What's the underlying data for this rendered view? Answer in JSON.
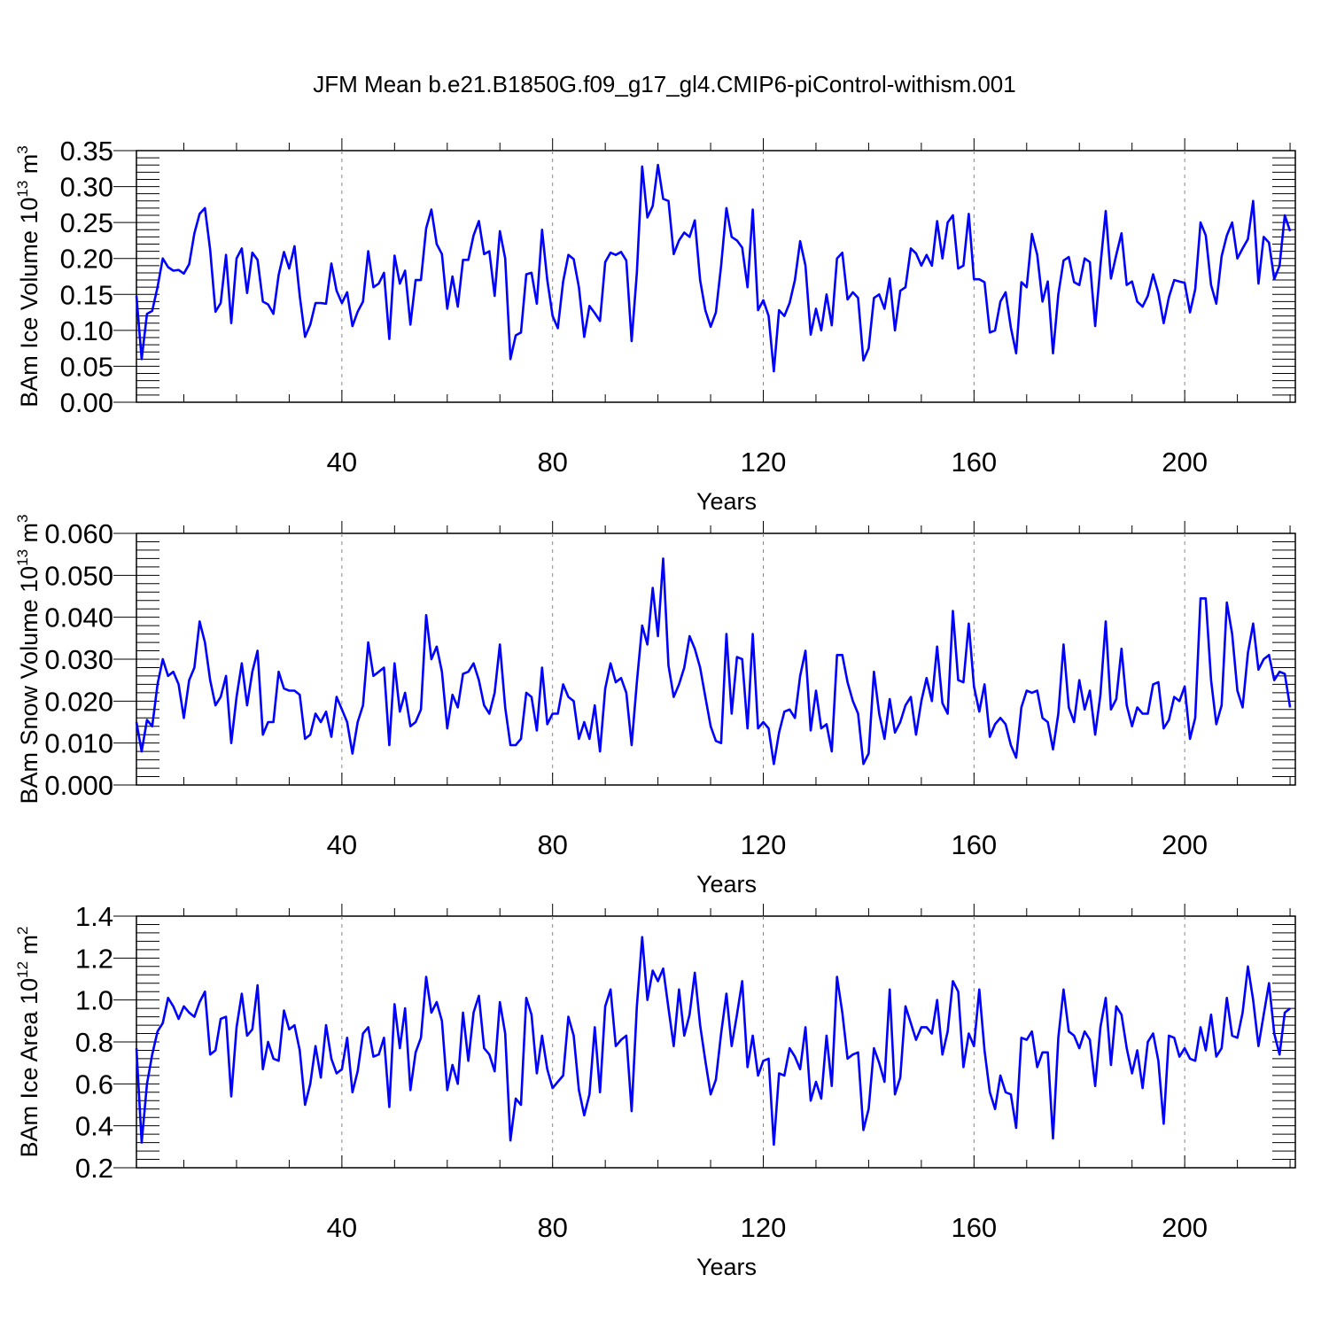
{
  "title": "JFM Mean b.e21.B1850G.f09_g17_gl4.CMIP6-piControl-withism.001",
  "style": {
    "line_color": "#0000ff",
    "grid_color": "#888888"
  },
  "chart_data": [
    {
      "type": "line",
      "xlabel": "Years",
      "ylabel": "BAm Ice Volume 10",
      "ylabel_exp": "13",
      "ylabel_unit": " m",
      "ylabel_unit_exp": "3",
      "xlim": [
        1,
        221
      ],
      "ylim": [
        0,
        0.35
      ],
      "xticks": [
        40,
        80,
        120,
        160,
        200
      ],
      "xtick_labels": [
        "40",
        "80",
        "120",
        "160",
        "200"
      ],
      "yticks": [
        0,
        0.05,
        0.1,
        0.15,
        0.2,
        0.25,
        0.3,
        0.35
      ],
      "ytick_labels": [
        "0.00",
        "0.05",
        "0.10",
        "0.15",
        "0.20",
        "0.25",
        "0.30",
        "0.35"
      ],
      "grid": "vertical dashed at major x ticks",
      "x_start": 1,
      "values": [
        0.148,
        0.06,
        0.123,
        0.127,
        0.16,
        0.2,
        0.188,
        0.183,
        0.184,
        0.179,
        0.192,
        0.235,
        0.262,
        0.27,
        0.212,
        0.126,
        0.138,
        0.205,
        0.11,
        0.2,
        0.214,
        0.152,
        0.208,
        0.198,
        0.14,
        0.136,
        0.123,
        0.177,
        0.209,
        0.186,
        0.217,
        0.148,
        0.091,
        0.108,
        0.138,
        0.138,
        0.137,
        0.193,
        0.155,
        0.138,
        0.153,
        0.106,
        0.126,
        0.14,
        0.21,
        0.16,
        0.165,
        0.18,
        0.088,
        0.204,
        0.165,
        0.183,
        0.108,
        0.17,
        0.17,
        0.242,
        0.268,
        0.22,
        0.206,
        0.13,
        0.175,
        0.133,
        0.198,
        0.198,
        0.232,
        0.252,
        0.206,
        0.21,
        0.148,
        0.238,
        0.2,
        0.06,
        0.093,
        0.097,
        0.178,
        0.18,
        0.137,
        0.24,
        0.17,
        0.12,
        0.103,
        0.168,
        0.205,
        0.199,
        0.16,
        0.091,
        0.134,
        0.124,
        0.113,
        0.195,
        0.208,
        0.205,
        0.209,
        0.197,
        0.085,
        0.18,
        0.328,
        0.257,
        0.273,
        0.33,
        0.283,
        0.28,
        0.206,
        0.225,
        0.236,
        0.23,
        0.253,
        0.17,
        0.128,
        0.105,
        0.125,
        0.19,
        0.27,
        0.23,
        0.225,
        0.215,
        0.16,
        0.268,
        0.128,
        0.142,
        0.12,
        0.043,
        0.128,
        0.12,
        0.138,
        0.17,
        0.224,
        0.19,
        0.094,
        0.13,
        0.1,
        0.15,
        0.107,
        0.2,
        0.208,
        0.143,
        0.153,
        0.145,
        0.058,
        0.075,
        0.145,
        0.15,
        0.13,
        0.172,
        0.1,
        0.155,
        0.16,
        0.214,
        0.207,
        0.19,
        0.205,
        0.19,
        0.252,
        0.2,
        0.25,
        0.26,
        0.186,
        0.19,
        0.262,
        0.171,
        0.171,
        0.167,
        0.097,
        0.1,
        0.14,
        0.153,
        0.104,
        0.068,
        0.167,
        0.16,
        0.234,
        0.205,
        0.14,
        0.168,
        0.068,
        0.15,
        0.197,
        0.202,
        0.167,
        0.163,
        0.2,
        0.195,
        0.106,
        0.19,
        0.266,
        0.172,
        0.205,
        0.235,
        0.163,
        0.168,
        0.14,
        0.133,
        0.148,
        0.178,
        0.152,
        0.11,
        0.146,
        0.17,
        0.168,
        0.166,
        0.125,
        0.157,
        0.25,
        0.232,
        0.163,
        0.137,
        0.203,
        0.232,
        0.25,
        0.2,
        0.214,
        0.227,
        0.28,
        0.165,
        0.23,
        0.222,
        0.171,
        0.19,
        0.26,
        0.238
      ]
    },
    {
      "type": "line",
      "xlabel": "Years",
      "ylabel": "BAm Snow Volume 10",
      "ylabel_exp": "13",
      "ylabel_unit": " m",
      "ylabel_unit_exp": "3",
      "xlim": [
        1,
        221
      ],
      "ylim": [
        0,
        0.06
      ],
      "xticks": [
        40,
        80,
        120,
        160,
        200
      ],
      "xtick_labels": [
        "40",
        "80",
        "120",
        "160",
        "200"
      ],
      "yticks": [
        0,
        0.01,
        0.02,
        0.03,
        0.04,
        0.05,
        0.06
      ],
      "ytick_labels": [
        "0.000",
        "0.010",
        "0.020",
        "0.030",
        "0.040",
        "0.050",
        "0.060"
      ],
      "grid": "vertical dashed at major x ticks",
      "x_start": 1,
      "values": [
        0.015,
        0.008,
        0.0155,
        0.014,
        0.024,
        0.03,
        0.026,
        0.027,
        0.024,
        0.016,
        0.025,
        0.028,
        0.039,
        0.034,
        0.025,
        0.019,
        0.021,
        0.026,
        0.01,
        0.021,
        0.029,
        0.019,
        0.027,
        0.032,
        0.012,
        0.015,
        0.015,
        0.027,
        0.023,
        0.0225,
        0.0225,
        0.0215,
        0.011,
        0.012,
        0.017,
        0.015,
        0.0175,
        0.0115,
        0.021,
        0.018,
        0.015,
        0.0075,
        0.015,
        0.019,
        0.034,
        0.026,
        0.027,
        0.028,
        0.0095,
        0.029,
        0.0175,
        0.022,
        0.014,
        0.015,
        0.018,
        0.0405,
        0.03,
        0.033,
        0.027,
        0.0135,
        0.0215,
        0.0185,
        0.0265,
        0.027,
        0.029,
        0.025,
        0.019,
        0.017,
        0.022,
        0.0335,
        0.0185,
        0.0095,
        0.0095,
        0.011,
        0.022,
        0.021,
        0.013,
        0.028,
        0.0145,
        0.017,
        0.017,
        0.024,
        0.021,
        0.02,
        0.011,
        0.015,
        0.011,
        0.019,
        0.008,
        0.023,
        0.029,
        0.0245,
        0.0255,
        0.022,
        0.0095,
        0.0245,
        0.038,
        0.0335,
        0.047,
        0.0355,
        0.054,
        0.0285,
        0.021,
        0.024,
        0.028,
        0.0355,
        0.0325,
        0.028,
        0.021,
        0.014,
        0.0105,
        0.01,
        0.036,
        0.017,
        0.0305,
        0.03,
        0.0135,
        0.036,
        0.0135,
        0.015,
        0.0135,
        0.005,
        0.0125,
        0.0175,
        0.018,
        0.016,
        0.026,
        0.032,
        0.013,
        0.0225,
        0.0135,
        0.0145,
        0.008,
        0.031,
        0.031,
        0.0245,
        0.02,
        0.017,
        0.005,
        0.0075,
        0.027,
        0.017,
        0.011,
        0.0205,
        0.0125,
        0.015,
        0.019,
        0.021,
        0.012,
        0.02,
        0.0255,
        0.02,
        0.033,
        0.0195,
        0.017,
        0.0415,
        0.025,
        0.0245,
        0.0385,
        0.0235,
        0.0175,
        0.024,
        0.0115,
        0.0145,
        0.016,
        0.0145,
        0.0095,
        0.0065,
        0.0185,
        0.0225,
        0.022,
        0.0225,
        0.016,
        0.015,
        0.0085,
        0.017,
        0.0335,
        0.0185,
        0.015,
        0.025,
        0.018,
        0.0225,
        0.012,
        0.0215,
        0.039,
        0.018,
        0.0205,
        0.0325,
        0.019,
        0.014,
        0.0185,
        0.017,
        0.017,
        0.024,
        0.0245,
        0.0135,
        0.0155,
        0.021,
        0.02,
        0.0235,
        0.011,
        0.016,
        0.0445,
        0.0445,
        0.025,
        0.0145,
        0.019,
        0.0435,
        0.036,
        0.0225,
        0.0185,
        0.0315,
        0.0385,
        0.0275,
        0.03,
        0.031,
        0.025,
        0.027,
        0.0265,
        0.0185
      ]
    },
    {
      "type": "line",
      "xlabel": "Years",
      "ylabel": "BAm Ice Area 10",
      "ylabel_exp": "12",
      "ylabel_unit": " m",
      "ylabel_unit_exp": "2",
      "xlim": [
        1,
        221
      ],
      "ylim": [
        0.2,
        1.4
      ],
      "xticks": [
        40,
        80,
        120,
        160,
        200
      ],
      "xtick_labels": [
        "40",
        "80",
        "120",
        "160",
        "200"
      ],
      "yticks": [
        0.2,
        0.4,
        0.6,
        0.8,
        1.0,
        1.2,
        1.4
      ],
      "ytick_labels": [
        "0.2",
        "0.4",
        "0.6",
        "0.8",
        "1.0",
        "1.2",
        "1.4"
      ],
      "grid": "vertical dashed at major x ticks",
      "x_start": 1,
      "values": [
        0.77,
        0.32,
        0.6,
        0.74,
        0.85,
        0.89,
        1.01,
        0.97,
        0.91,
        0.97,
        0.94,
        0.92,
        0.99,
        1.04,
        0.74,
        0.76,
        0.91,
        0.92,
        0.54,
        0.87,
        1.03,
        0.83,
        0.86,
        1.07,
        0.67,
        0.8,
        0.72,
        0.71,
        0.95,
        0.86,
        0.88,
        0.76,
        0.5,
        0.6,
        0.78,
        0.63,
        0.88,
        0.72,
        0.65,
        0.67,
        0.82,
        0.56,
        0.66,
        0.84,
        0.87,
        0.73,
        0.74,
        0.82,
        0.49,
        0.98,
        0.77,
        0.96,
        0.57,
        0.75,
        0.82,
        1.11,
        0.94,
        0.99,
        0.9,
        0.57,
        0.69,
        0.6,
        0.94,
        0.71,
        0.94,
        1.02,
        0.77,
        0.74,
        0.66,
        0.99,
        0.84,
        0.33,
        0.53,
        0.5,
        1.01,
        0.93,
        0.65,
        0.83,
        0.67,
        0.58,
        0.61,
        0.64,
        0.92,
        0.83,
        0.57,
        0.45,
        0.55,
        0.87,
        0.56,
        0.97,
        1.05,
        0.78,
        0.81,
        0.83,
        0.47,
        0.97,
        1.3,
        1.0,
        1.14,
        1.09,
        1.15,
        0.96,
        0.78,
        1.05,
        0.83,
        0.93,
        1.13,
        0.88,
        0.71,
        0.55,
        0.62,
        0.84,
        1.03,
        0.78,
        0.93,
        1.09,
        0.68,
        0.83,
        0.64,
        0.71,
        0.72,
        0.31,
        0.65,
        0.64,
        0.77,
        0.73,
        0.67,
        0.87,
        0.52,
        0.61,
        0.53,
        0.83,
        0.59,
        1.11,
        0.94,
        0.72,
        0.74,
        0.75,
        0.38,
        0.48,
        0.77,
        0.7,
        0.61,
        1.05,
        0.55,
        0.63,
        0.97,
        0.89,
        0.81,
        0.87,
        0.87,
        0.84,
        1.0,
        0.74,
        0.85,
        1.09,
        1.04,
        0.68,
        0.84,
        0.78,
        1.05,
        0.76,
        0.56,
        0.48,
        0.64,
        0.56,
        0.55,
        0.39,
        0.82,
        0.81,
        0.85,
        0.68,
        0.75,
        0.75,
        0.34,
        0.82,
        1.05,
        0.85,
        0.83,
        0.77,
        0.85,
        0.81,
        0.59,
        0.87,
        1.01,
        0.69,
        0.97,
        0.93,
        0.77,
        0.65,
        0.76,
        0.58,
        0.8,
        0.84,
        0.71,
        0.41,
        0.83,
        0.82,
        0.73,
        0.77,
        0.72,
        0.71,
        0.87,
        0.76,
        0.93,
        0.73,
        0.77,
        1.01,
        0.83,
        0.82,
        0.94,
        1.16,
        1.0,
        0.78,
        0.93,
        1.08,
        0.84,
        0.74,
        0.94,
        0.96
      ]
    }
  ]
}
